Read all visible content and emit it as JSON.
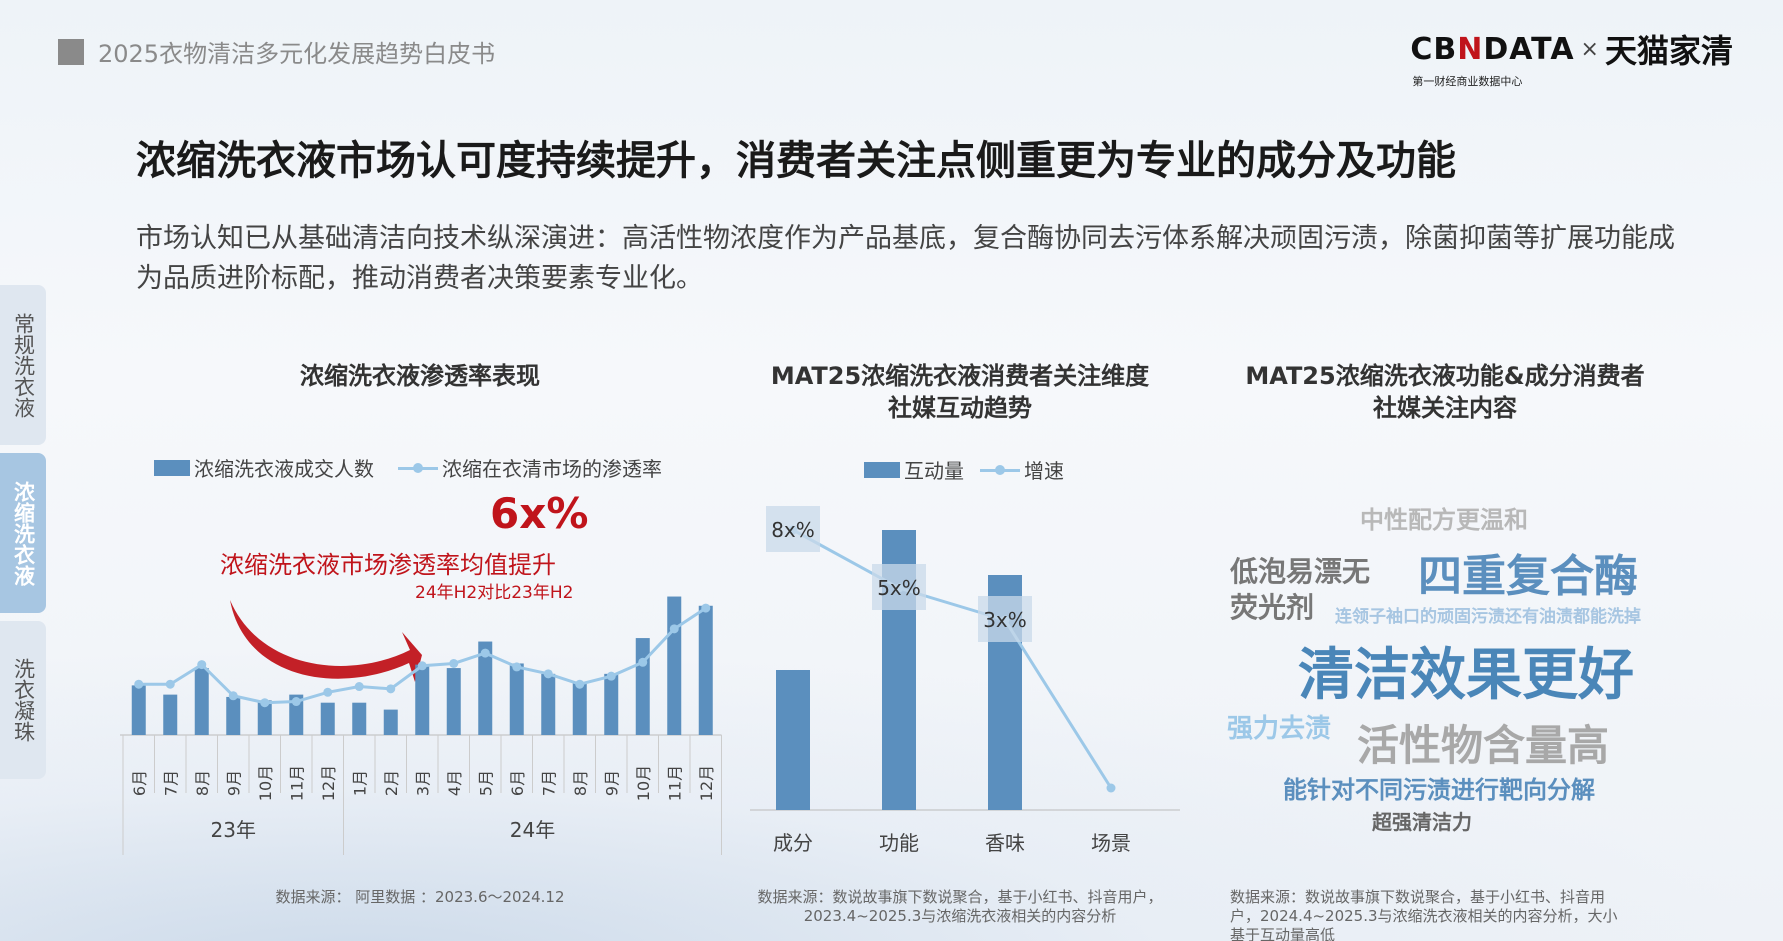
{
  "header": {
    "report_title": "2025衣物清洁多元化发展趋势白皮书",
    "logo_cbn_pre": "CB",
    "logo_cbn_n": "N",
    "logo_cbn_post": "DATA",
    "logo_x": "×",
    "logo_tmall": "天猫家清",
    "logo_sub": "第一财经商业数据中心"
  },
  "main_title": "浓缩洗衣液市场认可度持续提升，消费者关注点侧重更为专业的成分及功能",
  "description": "市场认知已从基础清洁向技术纵深演进：高活性物浓度作为产品基底，复合酶协同去污体系解决顽固污渍，除菌抑菌等扩展功能成为品质进阶标配，推动消费者决策要素专业化。",
  "side_tabs": [
    {
      "label": "常规洗衣液",
      "active": false
    },
    {
      "label": "浓缩洗衣液",
      "active": true
    },
    {
      "label": "洗衣凝珠",
      "active": false
    }
  ],
  "panel1": {
    "title": "浓缩洗衣液渗透率表现",
    "legend_bar": "浓缩洗衣液成交人数",
    "legend_line": "浓缩在衣清市场的渗透率",
    "callout_value": "6x%",
    "callout_text": "浓缩洗衣液市场渗透率均值提升",
    "callout_sub": "24年H2对比23年H2",
    "source": "数据来源： 阿里数据 ：2023.6～2024.12"
  },
  "panel2": {
    "title_line1": "MAT25浓缩洗衣液消费者关注维度",
    "title_line2": "社媒互动趋势",
    "legend_bar": "互动量",
    "legend_line": "增速",
    "source_line1": "数据来源：数说故事旗下数说聚合，基于小红书、抖音用户，",
    "source_line2": "2023.4~2025.3与浓缩洗衣液相关的内容分析"
  },
  "panel3": {
    "title_line1": "MAT25浓缩洗衣液功能&成分消费者",
    "title_line2": "社媒关注内容",
    "source_line1": "数据来源：数说故事旗下数说聚合，基于小红书、抖音用",
    "source_line2": "户，2024.4~2025.3与浓缩洗衣液相关的内容分析，大小",
    "source_line3": "基于互动量高低",
    "words": [
      {
        "text": "中性配方更温和",
        "color": "#b8b8b8"
      },
      {
        "text": "低泡易漂无",
        "color": "#777777"
      },
      {
        "text": "荧光剂",
        "color": "#777777"
      },
      {
        "text": "四重复合酶",
        "color": "#5b8fbe"
      },
      {
        "text": "连领子袖口的顽固污渍还有油渍都能洗掉",
        "color": "#a7c6e2"
      },
      {
        "text": "清洁效果更好",
        "color": "#4a86b8"
      },
      {
        "text": "强力去渍",
        "color": "#9cc8e8"
      },
      {
        "text": "活性物含量高",
        "color": "#a8a8a8"
      },
      {
        "text": "能针对不同污渍进行靶向分解",
        "color": "#5b8fbe"
      },
      {
        "text": "超强清洁力",
        "color": "#666666"
      }
    ]
  },
  "colors": {
    "bar": "#5b8fbe",
    "line": "#9cc8e8",
    "accent": "#c0141b"
  },
  "chart_data": [
    {
      "type": "bar",
      "title": "浓缩洗衣液渗透率表现",
      "categories": [
        "6月",
        "7月",
        "8月",
        "9月",
        "10月",
        "11月",
        "12月",
        "1月",
        "2月",
        "3月",
        "4月",
        "5月",
        "6月",
        "7月",
        "8月",
        "9月",
        "10月",
        "11月",
        "12月"
      ],
      "groups": [
        {
          "label": "23年",
          "span": 7
        },
        {
          "label": "24年",
          "span": 12
        }
      ],
      "series": [
        {
          "name": "浓缩洗衣液成交人数",
          "kind": "bar",
          "values": [
            43,
            35,
            58,
            33,
            30,
            35,
            28,
            28,
            22,
            61,
            58,
            81,
            62,
            53,
            45,
            53,
            84,
            120,
            112
          ]
        },
        {
          "name": "浓缩在衣清市场的渗透率",
          "kind": "line",
          "values": [
            44,
            44,
            61,
            34,
            28,
            29,
            37,
            42,
            40,
            60,
            62,
            71,
            59,
            53,
            44,
            51,
            63,
            92,
            110
          ]
        }
      ],
      "ylim": [
        0,
        130
      ]
    },
    {
      "type": "bar",
      "title": "MAT25浓缩洗衣液消费者关注维度社媒互动趋势",
      "categories": [
        "成分",
        "功能",
        "香味",
        "场景"
      ],
      "series": [
        {
          "name": "互动量",
          "kind": "bar",
          "values": [
            140,
            280,
            235,
            0
          ]
        },
        {
          "name": "增速",
          "kind": "line",
          "values": [
            280,
            222,
            190,
            22
          ],
          "labels": [
            "8x%",
            "5x%",
            "3x%",
            ""
          ]
        }
      ],
      "ylim": [
        0,
        300
      ]
    }
  ]
}
